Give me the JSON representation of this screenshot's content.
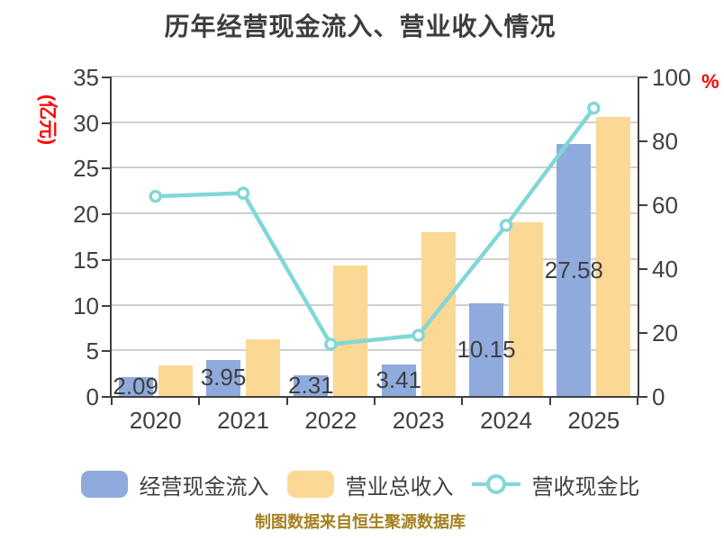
{
  "title": "历年经营现金流入、营业收入情况",
  "footer": "制图数据来自恒生聚源数据库",
  "axes": {
    "left": {
      "unit": "(亿元)",
      "tick_labels": [
        0,
        5,
        10,
        15,
        20,
        25,
        30,
        35
      ],
      "max": 35
    },
    "right": {
      "unit": "%",
      "tick_labels": [
        0,
        20,
        40,
        60,
        80,
        100
      ],
      "max": 100
    }
  },
  "legend": [
    {
      "label": "经营现金流入",
      "color": "#8FAADC",
      "type": "bar"
    },
    {
      "label": "营业总收入",
      "color": "#FBD893",
      "type": "bar"
    },
    {
      "label": "营收现金比",
      "color": "#82D7D6",
      "type": "line"
    }
  ],
  "chart_data": {
    "type": "bar+line combo",
    "categories": [
      "2020",
      "2021",
      "2022",
      "2023",
      "2024",
      "2025"
    ],
    "series": [
      {
        "name": "经营现金流入",
        "type": "bar",
        "axis": "left",
        "color": "#8FAADC",
        "values": [
          2.09,
          3.95,
          2.31,
          3.41,
          10.15,
          27.58
        ],
        "labels": [
          "2.09",
          "3.95",
          "2.31",
          "3.41",
          "10.15",
          "27.58"
        ]
      },
      {
        "name": "营业总收入",
        "type": "bar",
        "axis": "left",
        "color": "#FBD893",
        "values": [
          3.35,
          6.2,
          14.3,
          17.9,
          19.0,
          30.6
        ]
      },
      {
        "name": "营收现金比",
        "type": "line",
        "axis": "right",
        "color": "#82D7D6",
        "marker": "circle-white-fill",
        "values": [
          62.5,
          63.5,
          16.2,
          19.0,
          53.4,
          90.1
        ]
      }
    ],
    "left_axis": {
      "label": "(亿元)",
      "range": [
        0,
        35
      ],
      "tick_step": 5
    },
    "right_axis": {
      "label": "%",
      "range": [
        0,
        100
      ],
      "tick_step": 20
    },
    "grid": "horizontal only, at every left-axis tick",
    "legend_position": "bottom",
    "title": "历年经营现金流入、营业收入情况"
  },
  "colors": {
    "title_text": "#3d3d3d",
    "axis_text": "#3f3f3f",
    "axis_line": "#3f3f3f",
    "gridline": "#cfcfcf",
    "unit_label_red": "#ff0000",
    "footer_gold": "#a5801f",
    "bar_cash_inflow": "#8FAADC",
    "bar_revenue": "#FBD893",
    "line_ratio": "#82D7D6",
    "marker_fill": "#ffffff"
  }
}
